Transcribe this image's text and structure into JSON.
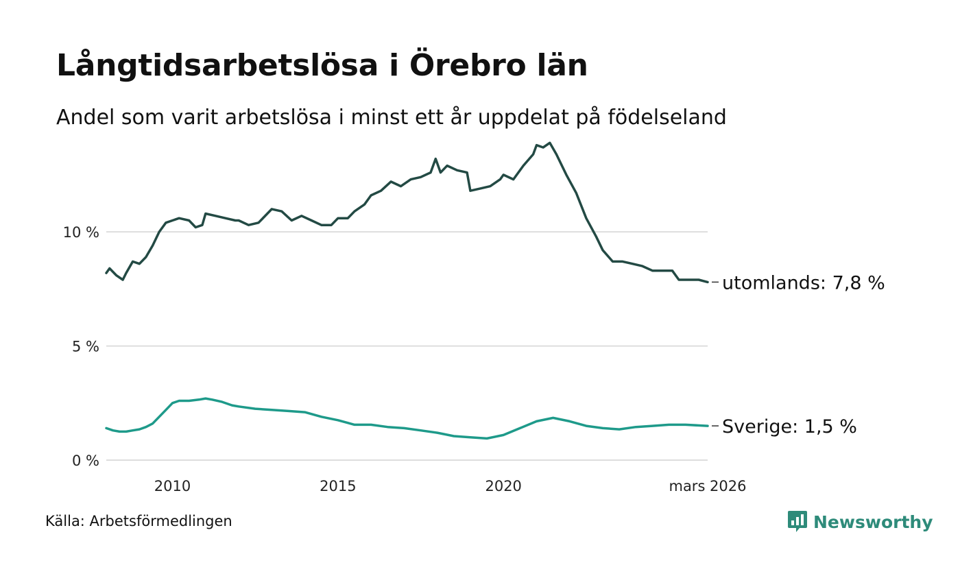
{
  "title": "Långtidsarbetslösa i Örebro län",
  "subtitle": "Andel som varit arbetslösa i minst ett år uppdelat på födelseland",
  "source": "Källa: Arbetsförmedlingen",
  "brand": {
    "name": "Newsworthy",
    "icon": "newsworthy-logo-icon",
    "color": "#2e8b7a"
  },
  "chart_data": {
    "type": "line",
    "title": "Långtidsarbetslösa i Örebro län",
    "xlabel": "",
    "ylabel": "",
    "xlim": [
      2008.0,
      2026.17
    ],
    "ylim": [
      0,
      14
    ],
    "grid": true,
    "y_ticks": [
      {
        "value": 0,
        "label": "0 %"
      },
      {
        "value": 5,
        "label": "5 %"
      },
      {
        "value": 10,
        "label": "10 %"
      }
    ],
    "x_ticks": [
      {
        "value": 2010,
        "label": "2010"
      },
      {
        "value": 2015,
        "label": "2015"
      },
      {
        "value": 2020,
        "label": "2020"
      },
      {
        "value": 2026.17,
        "label": "mars 2026"
      }
    ],
    "series": [
      {
        "name": "utomlands",
        "label": "utomlands: 7,8 %",
        "color": "#234a44",
        "x": [
          2008.0,
          2008.1,
          2008.3,
          2008.5,
          2008.6,
          2008.8,
          2009.0,
          2009.2,
          2009.4,
          2009.6,
          2009.8,
          2010.0,
          2010.2,
          2010.5,
          2010.7,
          2010.9,
          2011.0,
          2011.3,
          2011.6,
          2011.9,
          2012.0,
          2012.3,
          2012.6,
          2013.0,
          2013.3,
          2013.6,
          2013.9,
          2014.2,
          2014.5,
          2014.8,
          2015.0,
          2015.3,
          2015.5,
          2015.8,
          2016.0,
          2016.3,
          2016.6,
          2016.9,
          2017.2,
          2017.5,
          2017.8,
          2017.95,
          2018.1,
          2018.3,
          2018.6,
          2018.9,
          2019.0,
          2019.3,
          2019.6,
          2019.9,
          2020.0,
          2020.3,
          2020.6,
          2020.9,
          2021.0,
          2021.2,
          2021.4,
          2021.6,
          2021.9,
          2022.2,
          2022.5,
          2022.8,
          2023.0,
          2023.3,
          2023.6,
          2023.9,
          2024.2,
          2024.5,
          2024.8,
          2025.1,
          2025.3,
          2025.6,
          2025.9,
          2026.17
        ],
        "values": [
          8.2,
          8.4,
          8.1,
          7.9,
          8.2,
          8.7,
          8.6,
          8.9,
          9.4,
          10.0,
          10.4,
          10.5,
          10.6,
          10.5,
          10.2,
          10.3,
          10.8,
          10.7,
          10.6,
          10.5,
          10.5,
          10.3,
          10.4,
          11.0,
          10.9,
          10.5,
          10.7,
          10.5,
          10.3,
          10.3,
          10.6,
          10.6,
          10.9,
          11.2,
          11.6,
          11.8,
          12.2,
          12.0,
          12.3,
          12.4,
          12.6,
          13.2,
          12.6,
          12.9,
          12.7,
          12.6,
          11.8,
          11.9,
          12.0,
          12.3,
          12.5,
          12.3,
          12.9,
          13.4,
          13.8,
          13.7,
          13.9,
          13.4,
          12.5,
          11.7,
          10.6,
          9.8,
          9.2,
          8.7,
          8.7,
          8.6,
          8.5,
          8.3,
          8.3,
          8.3,
          7.9,
          7.9,
          7.9,
          7.8
        ]
      },
      {
        "name": "Sverige",
        "label": "Sverige: 1,5 %",
        "color": "#1e9a8a",
        "x": [
          2008.0,
          2008.2,
          2008.4,
          2008.6,
          2008.8,
          2009.0,
          2009.2,
          2009.4,
          2009.6,
          2009.8,
          2010.0,
          2010.2,
          2010.5,
          2010.8,
          2011.0,
          2011.2,
          2011.5,
          2011.8,
          2012.0,
          2012.5,
          2013.0,
          2013.5,
          2014.0,
          2014.5,
          2015.0,
          2015.5,
          2016.0,
          2016.5,
          2017.0,
          2017.5,
          2018.0,
          2018.5,
          2019.0,
          2019.5,
          2020.0,
          2020.5,
          2021.0,
          2021.5,
          2022.0,
          2022.5,
          2023.0,
          2023.5,
          2024.0,
          2024.5,
          2025.0,
          2025.5,
          2026.17
        ],
        "values": [
          1.4,
          1.3,
          1.25,
          1.25,
          1.3,
          1.35,
          1.45,
          1.6,
          1.9,
          2.2,
          2.5,
          2.6,
          2.6,
          2.65,
          2.7,
          2.65,
          2.55,
          2.4,
          2.35,
          2.25,
          2.2,
          2.15,
          2.1,
          1.9,
          1.75,
          1.55,
          1.55,
          1.45,
          1.4,
          1.3,
          1.2,
          1.05,
          1.0,
          0.95,
          1.1,
          1.4,
          1.7,
          1.85,
          1.7,
          1.5,
          1.4,
          1.35,
          1.45,
          1.5,
          1.55,
          1.55,
          1.5
        ]
      }
    ]
  }
}
